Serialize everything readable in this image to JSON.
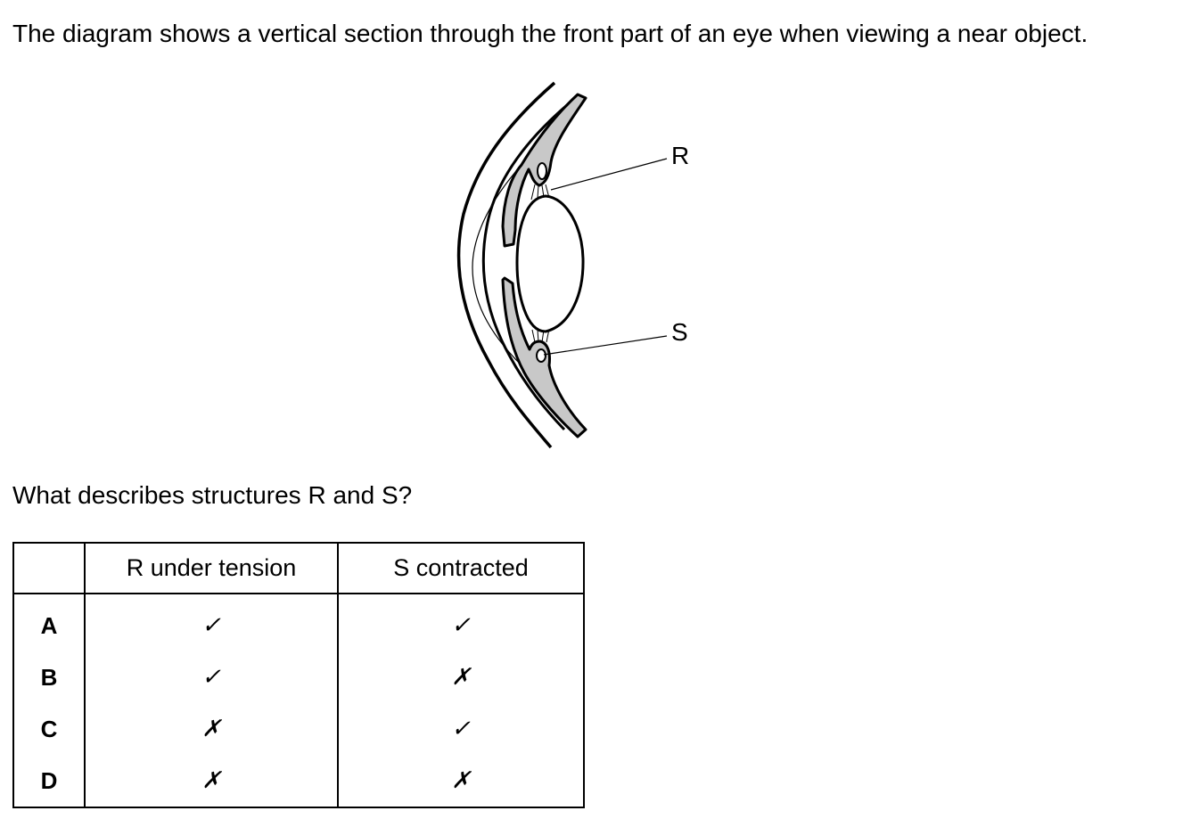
{
  "question": {
    "intro": "The diagram shows a vertical section through the front part of an eye when viewing a near object.",
    "prompt": "What describes structures R and S?"
  },
  "diagram": {
    "labels": {
      "r": "R",
      "s": "S"
    }
  },
  "table": {
    "headers": [
      "",
      "R under tension",
      "S contracted"
    ],
    "rows": [
      {
        "option": "A",
        "r": "✓",
        "s": "✓"
      },
      {
        "option": "B",
        "r": "✓",
        "s": "✗"
      },
      {
        "option": "C",
        "r": "✗",
        "s": "✓"
      },
      {
        "option": "D",
        "r": "✗",
        "s": "✗"
      }
    ]
  },
  "colors": {
    "shading": "#c8c8c8",
    "ink": "#000000"
  }
}
